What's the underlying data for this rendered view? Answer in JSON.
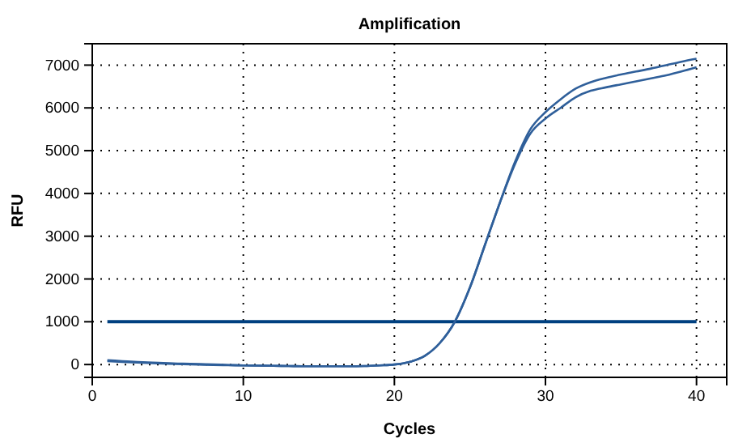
{
  "chart_data": {
    "type": "line",
    "title": "Amplification",
    "xlabel": "Cycles",
    "ylabel": "RFU",
    "x": [
      1,
      2,
      3,
      4,
      5,
      6,
      7,
      8,
      9,
      10,
      11,
      12,
      13,
      14,
      15,
      16,
      17,
      18,
      19,
      20,
      21,
      22,
      23,
      24,
      25,
      26,
      27,
      28,
      29,
      30,
      31,
      32,
      33,
      34,
      35,
      36,
      37,
      38,
      39,
      40
    ],
    "series": [
      {
        "color": "#2f5f9a",
        "values": [
          100,
          80,
          60,
          45,
          30,
          20,
          10,
          0,
          -10,
          -20,
          -25,
          -30,
          -35,
          -40,
          -40,
          -40,
          -40,
          -35,
          -20,
          0,
          60,
          200,
          500,
          1000,
          1800,
          2800,
          3800,
          4750,
          5500,
          5900,
          6200,
          6450,
          6600,
          6700,
          6780,
          6850,
          6920,
          7000,
          7080,
          7150
        ]
      },
      {
        "color": "#2f5f9a",
        "values": [
          80,
          60,
          45,
          30,
          20,
          10,
          0,
          -10,
          -15,
          -20,
          -25,
          -30,
          -35,
          -40,
          -40,
          -40,
          -40,
          -35,
          -20,
          0,
          60,
          200,
          500,
          1000,
          1800,
          2800,
          3800,
          4700,
          5400,
          5750,
          6000,
          6250,
          6400,
          6480,
          6550,
          6620,
          6690,
          6760,
          6850,
          6950
        ]
      }
    ],
    "ref_lines": [
      {
        "axis": "y",
        "value": 1000,
        "color": "#004080"
      }
    ],
    "xlim": [
      0,
      42
    ],
    "xticks": [
      0,
      10,
      20,
      30,
      40
    ],
    "ylim": [
      -300,
      7500
    ],
    "yticks": [
      0,
      1000,
      2000,
      3000,
      4000,
      5000,
      6000,
      7000
    ],
    "grid": true,
    "marker": "none",
    "line_style": "solid"
  }
}
